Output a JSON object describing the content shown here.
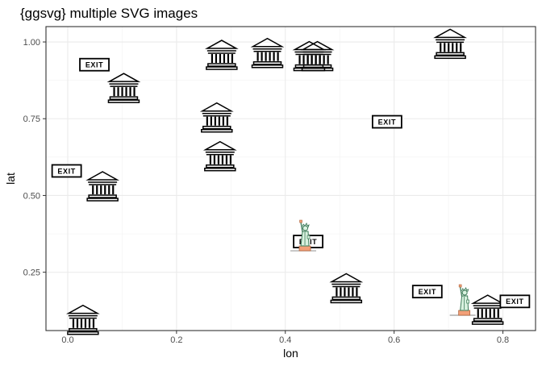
{
  "chart_data": {
    "type": "scatter",
    "title": "{ggsvg} multiple SVG images",
    "xlabel": "lon",
    "ylabel": "lat",
    "xlim": [
      -0.04,
      0.86
    ],
    "ylim": [
      0.06,
      1.05
    ],
    "x_ticks": [
      0.0,
      0.2,
      0.4,
      0.6,
      0.8
    ],
    "x_tick_labels": [
      "0.0",
      "0.2",
      "0.4",
      "0.6",
      "0.8"
    ],
    "y_ticks": [
      0.25,
      0.5,
      0.75,
      1.0
    ],
    "y_tick_labels": [
      "0.25",
      "0.50",
      "0.75",
      "1.00"
    ],
    "grid": true,
    "legend": "none",
    "exit_label": "EXIT",
    "series": [
      {
        "icon": "museum-icon",
        "points": [
          {
            "x": 0.028,
            "y": 0.095
          },
          {
            "x": 0.103,
            "y": 0.85
          },
          {
            "x": 0.064,
            "y": 0.53
          },
          {
            "x": 0.28,
            "y": 0.628
          },
          {
            "x": 0.274,
            "y": 0.754
          },
          {
            "x": 0.283,
            "y": 0.958
          },
          {
            "x": 0.367,
            "y": 0.964
          },
          {
            "x": 0.444,
            "y": 0.954
          },
          {
            "x": 0.459,
            "y": 0.954
          },
          {
            "x": 0.512,
            "y": 0.198
          },
          {
            "x": 0.703,
            "y": 0.994
          },
          {
            "x": 0.772,
            "y": 0.128
          }
        ]
      },
      {
        "icon": "exit-sign-icon",
        "points": [
          {
            "x": 0.049,
            "y": 0.926
          },
          {
            "x": -0.002,
            "y": 0.58
          },
          {
            "x": 0.587,
            "y": 0.74
          },
          {
            "x": 0.442,
            "y": 0.35
          },
          {
            "x": 0.661,
            "y": 0.187
          },
          {
            "x": 0.822,
            "y": 0.155
          }
        ]
      },
      {
        "icon": "statue-of-liberty-icon",
        "points": [
          {
            "x": 0.436,
            "y": 0.375
          },
          {
            "x": 0.729,
            "y": 0.165
          }
        ]
      }
    ]
  }
}
